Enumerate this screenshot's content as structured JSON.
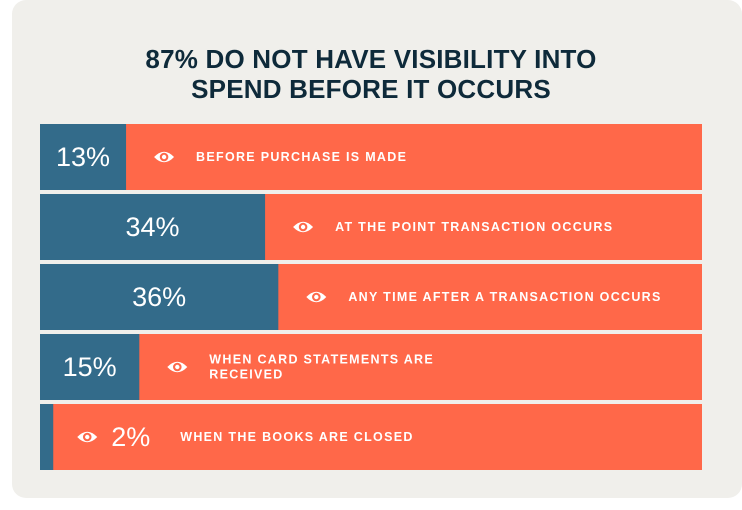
{
  "title_lines": [
    "87% DO NOT HAVE VISIBILITY INTO",
    "SPEND BEFORE IT OCCURS"
  ],
  "colors": {
    "background": "#f0efeb",
    "title": "#0e2a3a",
    "value_fill": "#336b8a",
    "remainder_fill": "#ff6849",
    "text": "#ffffff"
  },
  "chart_data": {
    "type": "bar",
    "orientation": "horizontal",
    "stacked_to": 100,
    "title": "87% DO NOT HAVE VISIBILITY INTO SPEND BEFORE IT OCCURS",
    "xlim": [
      0,
      100
    ],
    "grid": false,
    "categories": [
      [
        "BEFORE PURCHASE IS MADE"
      ],
      [
        "AT THE POINT TRANSACTION OCCURS"
      ],
      [
        "ANY TIME AFTER A TRANSACTION OCCURS"
      ],
      [
        "WHEN CARD STATEMENTS ARE",
        "RECEIVED"
      ],
      [
        "WHEN THE BOOKS ARE CLOSED"
      ]
    ],
    "values": [
      13,
      34,
      36,
      15,
      2
    ],
    "value_labels": [
      "13%",
      "34%",
      "36%",
      "15%",
      "2%"
    ],
    "icon": "eye-icon"
  }
}
